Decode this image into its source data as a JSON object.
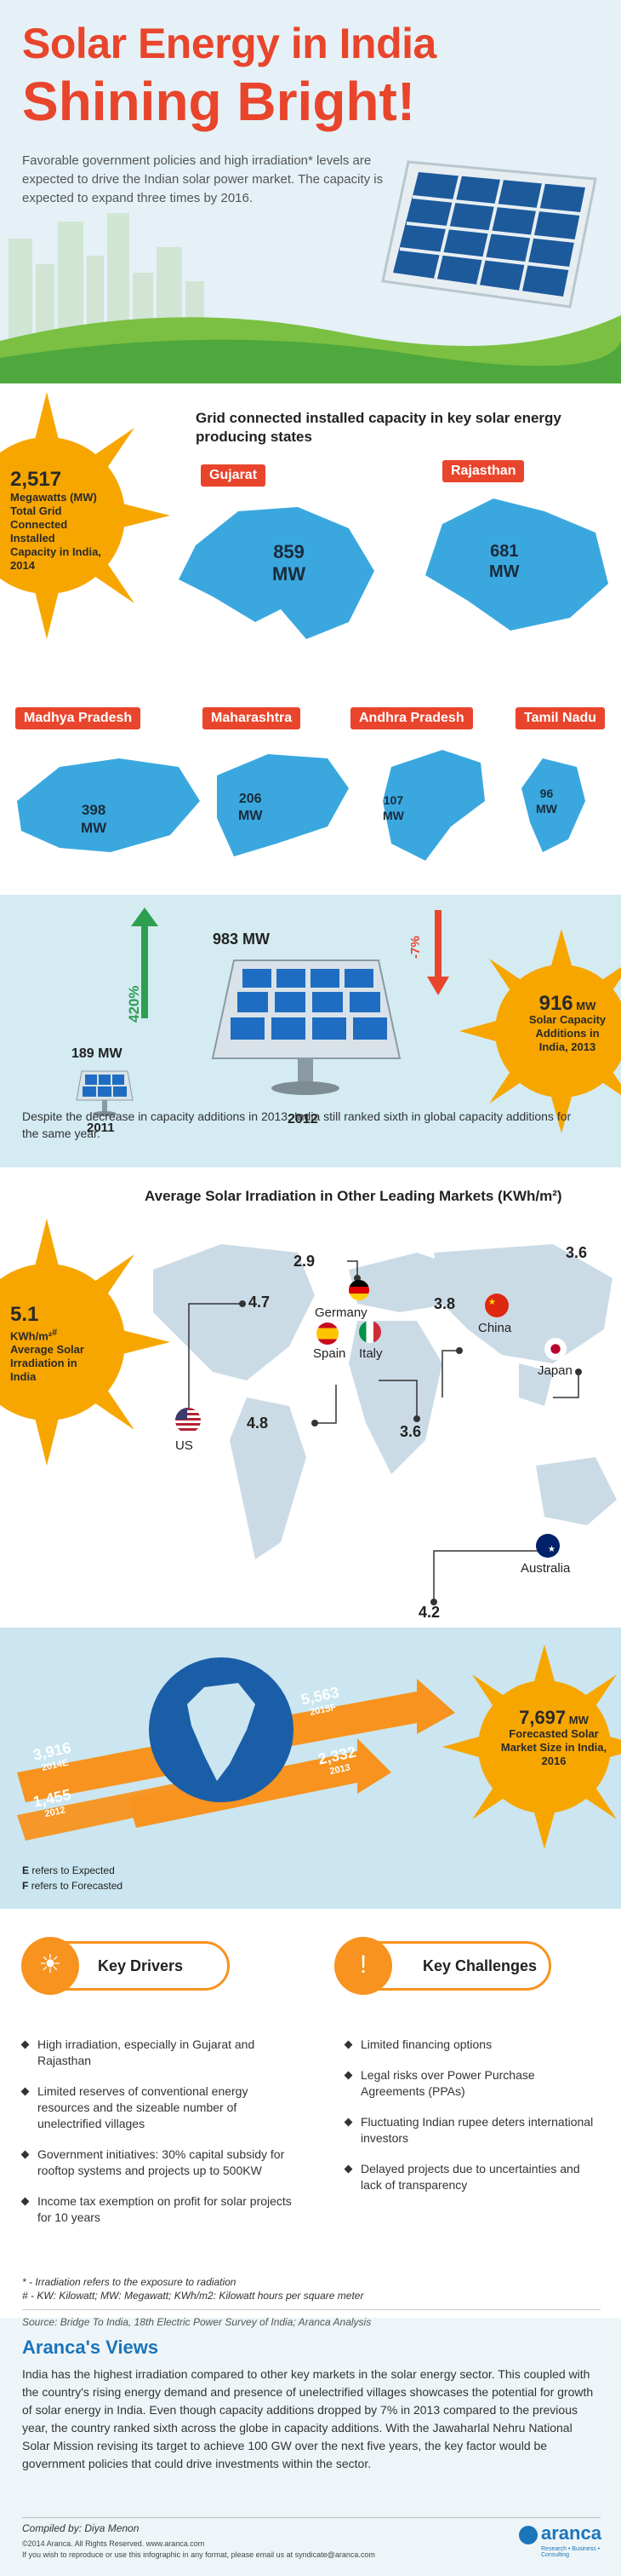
{
  "header": {
    "title_line1": "Solar Energy in India",
    "title_line2": "Shining Bright!",
    "intro": "Favorable government policies and high irradiation* levels are expected to drive the Indian solar power market. The capacity is expected to expand three times by 2016."
  },
  "installed": {
    "value": "2,517",
    "unit": "Megawatts (MW)",
    "label": "Total Grid Connected Installed Capacity in India, 2014"
  },
  "states": {
    "heading": "Grid connected installed capacity in key solar energy producing states",
    "items": [
      {
        "name": "Gujarat",
        "value": "859",
        "unit": "MW"
      },
      {
        "name": "Rajasthan",
        "value": "681",
        "unit": "MW"
      },
      {
        "name": "Madhya Pradesh",
        "value": "398",
        "unit": "MW"
      },
      {
        "name": "Maharashtra",
        "value": "206",
        "unit": "MW"
      },
      {
        "name": "Andhra Pradesh",
        "value": "107",
        "unit": "MW"
      },
      {
        "name": "Tamil Nadu",
        "value": "96",
        "unit": "MW"
      }
    ]
  },
  "capacity": {
    "growth_up": "420%",
    "growth_down": "-7%",
    "year2011_value": "189 MW",
    "year2011": "2011",
    "year2012_value": "983 MW",
    "year2012": "2012",
    "additions_value": "916",
    "additions_unit": "MW",
    "additions_label": "Solar Capacity Additions in India, 2013",
    "note": "Despite the decrease in capacity additions in 2013, India still ranked sixth in global capacity additions for the same year."
  },
  "irradiation": {
    "heading": "Average Solar Irradiation in Other Leading Markets (KWh/m²)",
    "india_value": "5.1",
    "india_unit": "KWh/m²",
    "india_superscript": "#",
    "india_label": "Average Solar Irradiation in India",
    "markets": [
      {
        "name": "US",
        "value": "4.7"
      },
      {
        "name": "Germany",
        "value": "2.9"
      },
      {
        "name": "Spain",
        "value": "4.8"
      },
      {
        "name": "Italy",
        "value": "3.6"
      },
      {
        "name": "China",
        "value": "3.8"
      },
      {
        "name": "Japan",
        "value": "3.6"
      },
      {
        "name": "Australia",
        "value": "4.2"
      }
    ]
  },
  "forecast": {
    "bars": [
      {
        "value": "1,455",
        "year": "2012"
      },
      {
        "value": "2,332",
        "year": "2013"
      },
      {
        "value": "3,916",
        "year": "2014E"
      },
      {
        "value": "5,563",
        "year": "2015F"
      }
    ],
    "size_value": "7,697",
    "size_unit": "MW",
    "size_label": "Forecasted Solar Market Size in India, 2016",
    "legend_e_letter": "E",
    "legend_e": "refers to Expected",
    "legend_f_letter": "F",
    "legend_f": "refers to Forecasted"
  },
  "drivers": {
    "title": "Key Drivers",
    "items": [
      "High irradiation, especially in Gujarat and Rajasthan",
      "Limited reserves of conventional energy resources and the sizeable number of unelectrified villages",
      "Government initiatives: 30% capital subsidy for rooftop systems and projects up to 500KW",
      "Income tax exemption on profit for solar projects for 10 years"
    ]
  },
  "challenges": {
    "title": "Key Challenges",
    "items": [
      "Limited financing options",
      "Legal risks over Power Purchase Agreements (PPAs)",
      "Fluctuating Indian rupee deters international investors",
      "Delayed projects due to uncertainties and lack of transparency"
    ]
  },
  "footnotes": {
    "note1": "* - Irradiation refers to the exposure to radiation",
    "note2": "# - KW: Kilowatt; MW: Megawatt; KWh/m2: Kilowatt hours per square meter",
    "source": "Source: Bridge To India, 18th Electric Power Survey of India; Aranca Analysis"
  },
  "views": {
    "title": "Aranca's Views",
    "body": "India has the highest irradiation compared to other key markets in the solar energy sector. This coupled with the country's rising energy demand and presence of unelectrified villages showcases the potential for growth of solar energy in India. Even though capacity additions dropped by 7% in 2013 compared to the previous year, the country ranked sixth across the globe in capacity additions. With the Jawaharlal Nehru National Solar Mission revising its target to achieve 100 GW over the next five years, the key factor would be government policies that could drive investments within the sector.",
    "compiled": "Compiled by: Diya Menon",
    "copyright": "©2014 Aranca. All Rights Reserved. www.aranca.com",
    "reproduce": "If you wish to reproduce or use this infographic in any format, please email us at syndicate@aranca.com",
    "logo": "aranca",
    "logo_tag": "Research • Business • Consulting"
  },
  "colors": {
    "accent": "#e8452c",
    "sun": "#f7a600",
    "map": "#3aa8df",
    "arrow": "#f7931e"
  }
}
